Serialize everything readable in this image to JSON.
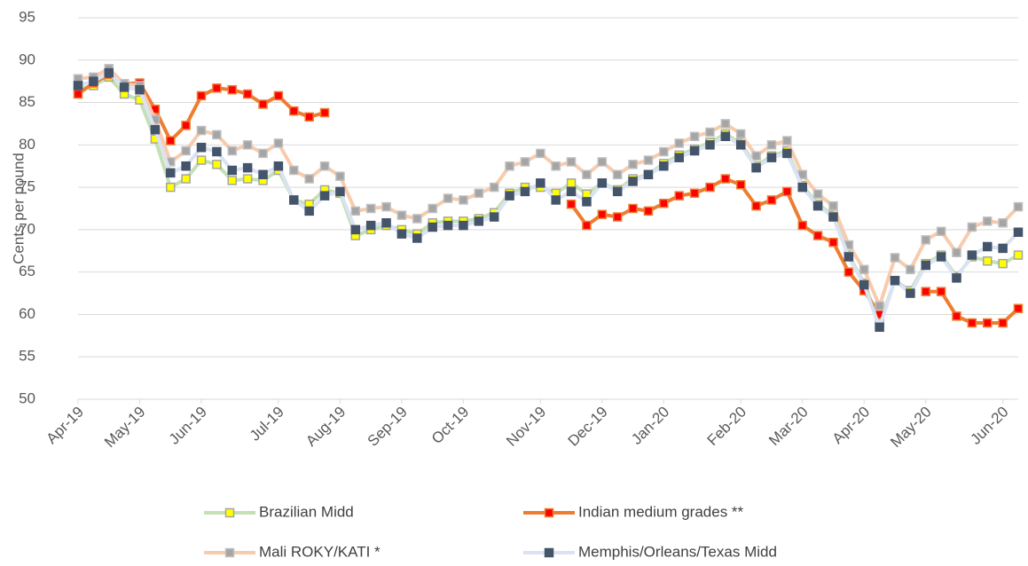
{
  "chart_data": {
    "type": "line",
    "y_label": "Cents per pound",
    "categories": [
      "Apr-19",
      null,
      null,
      null,
      "May-19",
      null,
      null,
      null,
      "Jun-19",
      null,
      null,
      null,
      null,
      "Jul-19",
      null,
      null,
      null,
      "Aug-19",
      null,
      null,
      null,
      "Sep-19",
      null,
      null,
      null,
      "Oct-19",
      null,
      null,
      null,
      null,
      "Nov-19",
      null,
      null,
      null,
      "Dec-19",
      null,
      null,
      null,
      "Jan-20",
      null,
      null,
      null,
      null,
      "Feb-20",
      null,
      null,
      null,
      "Mar-20",
      null,
      null,
      null,
      "Apr-20",
      null,
      null,
      null,
      "May-20",
      null,
      null,
      null,
      null,
      "Jun-20",
      null
    ],
    "series": [
      {
        "name": "Brazilian Midd",
        "color": "#c5e0b4",
        "marker_color": "#ffff00",
        "marker_edge": "#a5a5a5",
        "values": [
          86.5,
          87,
          88,
          86,
          85.3,
          80.7,
          75,
          76,
          78.2,
          77.7,
          75.8,
          76,
          75.8,
          77,
          73.5,
          73,
          74.7,
          74.3,
          69.3,
          70,
          70.5,
          70,
          69.5,
          70.8,
          71,
          71,
          71.3,
          72,
          74.3,
          75,
          75,
          74.3,
          75.5,
          74.2,
          75.5,
          74.7,
          76,
          76.5,
          77.8,
          78.8,
          79.5,
          80.3,
          81.3,
          80.2,
          77.5,
          78.7,
          79.3,
          75.2,
          73,
          71.7,
          67,
          63.7,
          59,
          64,
          62.8,
          66,
          67,
          64.5,
          66.8,
          66.3,
          66,
          67
        ]
      },
      {
        "name": "Indian medium grades **",
        "color": "#ed7d31",
        "marker_color": "#ff0000",
        "marker_edge": "#ed7d31",
        "values": [
          86,
          87.3,
          88.3,
          87.2,
          87.3,
          84.2,
          80.5,
          82.3,
          85.8,
          86.7,
          86.5,
          86,
          84.8,
          85.8,
          84,
          83.3,
          83.8,
          null,
          null,
          null,
          null,
          null,
          null,
          null,
          null,
          null,
          null,
          null,
          null,
          null,
          null,
          null,
          73,
          70.5,
          71.8,
          71.5,
          72.5,
          72.2,
          73.1,
          74,
          74.3,
          75,
          76,
          75.3,
          72.8,
          73.5,
          74.5,
          70.5,
          69.3,
          68.5,
          65,
          62.8,
          60,
          null,
          null,
          62.7,
          62.7,
          59.8,
          59,
          59,
          59,
          60.7
        ]
      },
      {
        "name": "Mali ROKY/KATI  *",
        "color": "#f8cbad",
        "marker_color": "#a5a5a5",
        "marker_edge": "#bfbfbf",
        "values": [
          87.8,
          88,
          89,
          87.2,
          87,
          83,
          78,
          79.3,
          81.7,
          81.2,
          79.3,
          80,
          79,
          80.2,
          77,
          76,
          77.5,
          76.3,
          72.2,
          72.5,
          72.7,
          71.7,
          71.3,
          72.5,
          73.7,
          73.5,
          74.3,
          75,
          77.5,
          78,
          79,
          77.5,
          78,
          76.5,
          78,
          76.5,
          77.7,
          78.2,
          79.2,
          80.2,
          81,
          81.5,
          82.5,
          81.3,
          78.7,
          80,
          80.5,
          76.5,
          74.2,
          72.8,
          68.2,
          65.3,
          61,
          66.7,
          65.3,
          68.8,
          69.8,
          67.3,
          70.3,
          71,
          70.8,
          72.7
        ]
      },
      {
        "name": "Memphis/Orleans/Texas Midd",
        "color": "#dae3f3",
        "marker_color": "#44546a",
        "marker_edge": "#44546a",
        "values": [
          87,
          87.5,
          88.5,
          86.8,
          86.5,
          81.8,
          76.7,
          77.5,
          79.7,
          79.2,
          77,
          77.3,
          76.5,
          77.5,
          73.5,
          72.2,
          74,
          74.5,
          70,
          70.5,
          70.8,
          69.5,
          69,
          70.3,
          70.5,
          70.5,
          71,
          71.5,
          74,
          74.5,
          75.5,
          73.5,
          74.5,
          73.3,
          75.5,
          74.5,
          75.7,
          76.5,
          77.5,
          78.5,
          79.3,
          80,
          81,
          80,
          77.3,
          78.5,
          79,
          75,
          72.8,
          71.5,
          66.8,
          63.5,
          58.5,
          64,
          62.5,
          65.8,
          66.8,
          64.3,
          67,
          68,
          67.8,
          69.7
        ]
      }
    ],
    "ylim": [
      50,
      95
    ],
    "yticks": [
      50,
      55,
      60,
      65,
      70,
      75,
      80,
      85,
      90,
      95
    ],
    "grid": true,
    "legend": "bottom"
  }
}
